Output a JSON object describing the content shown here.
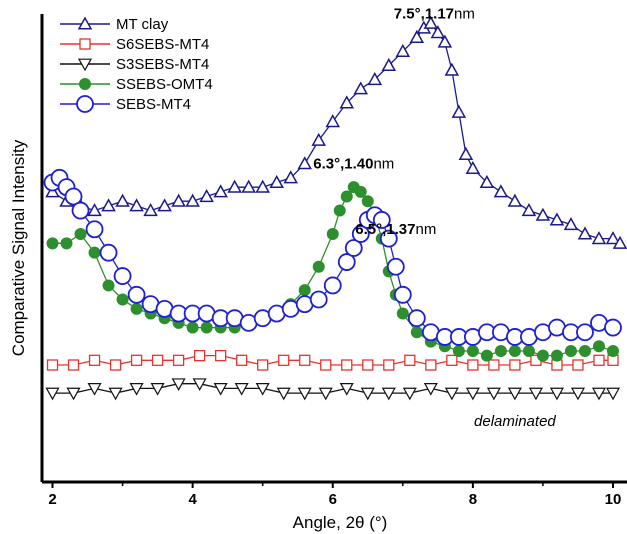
{
  "chart_data": {
    "type": "line",
    "xlabel": "Angle, 2θ (°)",
    "ylabel": "Comparative Signal Intensity",
    "xlim": [
      1.85,
      10.2
    ],
    "ylim": [
      0,
      100
    ],
    "xticks": [
      "2",
      "4",
      "6",
      "8",
      "10"
    ],
    "y_tick_labels": "none",
    "legend_position": "top-left",
    "series": [
      {
        "name": "MT clay",
        "color": "#1a1a8c",
        "marker": "triangle-up-open",
        "x": [
          2.0,
          2.2,
          2.4,
          2.6,
          2.8,
          3.0,
          3.2,
          3.4,
          3.6,
          3.8,
          4.0,
          4.2,
          4.4,
          4.6,
          4.8,
          5.0,
          5.2,
          5.4,
          5.6,
          5.8,
          6.0,
          6.2,
          6.4,
          6.6,
          6.8,
          7.0,
          7.2,
          7.3,
          7.4,
          7.5,
          7.6,
          7.7,
          7.8,
          7.9,
          8.0,
          8.2,
          8.4,
          8.6,
          8.8,
          9.0,
          9.2,
          9.4,
          9.6,
          9.8,
          10.0,
          10.1
        ],
        "y": [
          62,
          60,
          59,
          58,
          59,
          60,
          59,
          58,
          59,
          60,
          60,
          61,
          62,
          63,
          63,
          63,
          64,
          65,
          68,
          73,
          77,
          81,
          84,
          86,
          89,
          92,
          95,
          97,
          98,
          96,
          94,
          88,
          79,
          70,
          67,
          64,
          62,
          60,
          58,
          57,
          56,
          55,
          53,
          52,
          52,
          51
        ]
      },
      {
        "name": "S6SEBS-MT4",
        "color": "#e8332e",
        "marker": "square-open",
        "x": [
          2.0,
          2.3,
          2.6,
          2.9,
          3.2,
          3.5,
          3.8,
          4.1,
          4.4,
          4.7,
          5.0,
          5.3,
          5.6,
          5.9,
          6.2,
          6.5,
          6.8,
          7.1,
          7.4,
          7.7,
          8.0,
          8.3,
          8.6,
          8.9,
          9.2,
          9.5,
          9.8,
          10.0
        ],
        "y": [
          25,
          25,
          26,
          25,
          26,
          26,
          26,
          27,
          27,
          26,
          25,
          26,
          26,
          25,
          25,
          25,
          25,
          26,
          25,
          26,
          25,
          25,
          25,
          26,
          25,
          25,
          26,
          26
        ]
      },
      {
        "name": "S3SEBS-MT4",
        "color": "#111111",
        "marker": "triangle-down-open",
        "x": [
          2.0,
          2.3,
          2.6,
          2.9,
          3.2,
          3.5,
          3.8,
          4.1,
          4.4,
          4.7,
          5.0,
          5.3,
          5.6,
          5.9,
          6.2,
          6.5,
          6.8,
          7.1,
          7.4,
          7.7,
          8.0,
          8.3,
          8.6,
          8.9,
          9.2,
          9.5,
          9.8,
          10.0
        ],
        "y": [
          19,
          19,
          20,
          19,
          20,
          20,
          21,
          21,
          20,
          20,
          20,
          19,
          19,
          19,
          20,
          19,
          19,
          19,
          20,
          19,
          19,
          19,
          19,
          19,
          19,
          19,
          19,
          19
        ]
      },
      {
        "name": "SSEBS-OMT4",
        "color": "#2d8f2d",
        "marker": "circle-filled",
        "x": [
          2.0,
          2.2,
          2.4,
          2.6,
          2.8,
          3.0,
          3.2,
          3.4,
          3.6,
          3.8,
          4.0,
          4.2,
          4.4,
          4.6,
          4.8,
          5.0,
          5.2,
          5.4,
          5.6,
          5.8,
          6.0,
          6.1,
          6.2,
          6.3,
          6.4,
          6.5,
          6.6,
          6.7,
          6.8,
          6.9,
          7.0,
          7.2,
          7.4,
          7.6,
          7.8,
          8.0,
          8.2,
          8.4,
          8.6,
          8.8,
          9.0,
          9.2,
          9.4,
          9.6,
          9.8,
          10.0
        ],
        "y": [
          51,
          51,
          53,
          49,
          42,
          39,
          37,
          36,
          35,
          34,
          33,
          33,
          33,
          33,
          34,
          35,
          36,
          38,
          41,
          46,
          53,
          58,
          61,
          63,
          62,
          60,
          57,
          52,
          45,
          40,
          36,
          32,
          30,
          29,
          28,
          28,
          27,
          28,
          28,
          28,
          27,
          27,
          28,
          28,
          29,
          28
        ]
      },
      {
        "name": "SEBS-MT4",
        "color": "#1f1fd6",
        "marker": "circle-open",
        "x": [
          2.0,
          2.1,
          2.2,
          2.3,
          2.4,
          2.6,
          2.8,
          3.0,
          3.2,
          3.4,
          3.6,
          3.8,
          4.0,
          4.2,
          4.4,
          4.6,
          4.8,
          5.0,
          5.2,
          5.4,
          5.6,
          5.8,
          6.0,
          6.2,
          6.3,
          6.4,
          6.5,
          6.6,
          6.7,
          6.8,
          6.9,
          7.0,
          7.2,
          7.4,
          7.6,
          7.8,
          8.0,
          8.2,
          8.4,
          8.6,
          8.8,
          9.0,
          9.2,
          9.4,
          9.6,
          9.8,
          10.0
        ],
        "y": [
          64,
          65,
          63,
          61,
          58,
          54,
          49,
          44,
          40,
          38,
          37,
          36,
          36,
          36,
          35,
          35,
          34,
          35,
          36,
          37,
          38,
          39,
          42,
          47,
          50,
          53,
          56,
          57,
          56,
          52,
          46,
          40,
          35,
          32,
          31,
          31,
          31,
          32,
          32,
          31,
          31,
          32,
          33,
          32,
          32,
          34,
          33
        ]
      }
    ],
    "annotations": [
      {
        "bold": "7.5°,1.17",
        "unit": "nm",
        "x": 7.45,
        "y": 99
      },
      {
        "bold": "6.3°,1.40",
        "unit": "nm",
        "x": 6.3,
        "y": 67
      },
      {
        "bold": "6.5°,1.37",
        "unit": "nm",
        "x": 6.9,
        "y": 53
      },
      {
        "text": "delaminated",
        "x": 8.6,
        "y": 12
      }
    ]
  }
}
